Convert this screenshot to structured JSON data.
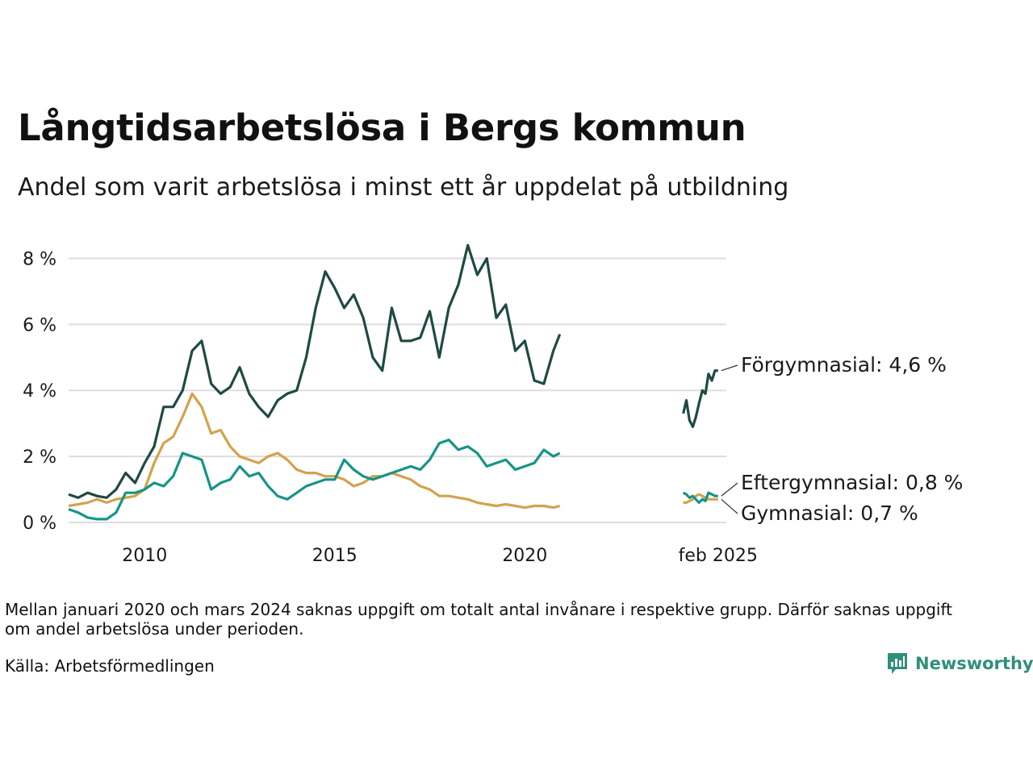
{
  "title": "Långtidsarbetslösa i Bergs kommun",
  "subtitle": "Andel som varit arbetslösa i minst ett år uppdelat på utbildning",
  "note": "Mellan januari 2020 och mars 2024 saknas uppgift om totalt antal invånare i respektive grupp. Därför saknas uppgift om andel arbetslösa under perioden.",
  "source": "Källa: Arbetsförmedlingen",
  "brand": "Newsworthy",
  "colors": {
    "forgymnasial": "#1f4a44",
    "eftergymnasial": "#159586",
    "gymnasial": "#d4a24c",
    "grid": "#dddddd",
    "brand": "#2f8f7a"
  },
  "chart_data": {
    "type": "line",
    "title": "Långtidsarbetslösa i Bergs kommun",
    "subtitle": "Andel som varit arbetslösa i minst ett år uppdelat på utbildning",
    "y_unit": "%",
    "ylim": [
      0,
      8.5
    ],
    "yticks": [
      0,
      2,
      4,
      6,
      8
    ],
    "ytick_labels": [
      "0 %",
      "2 %",
      "4 %",
      "6 %",
      "8 %"
    ],
    "xticks": [
      2010,
      2015,
      2020,
      2025.083
    ],
    "xtick_labels": [
      "2010",
      "2015",
      "2020",
      "feb 2025"
    ],
    "grid": true,
    "series": [
      {
        "name": "Förgymnasial",
        "color": "#1f4a44",
        "end_label": "Förgymnasial: 4,6 %",
        "segments": [
          {
            "x": [
              2008.0,
              2008.25,
              2008.5,
              2008.75,
              2009.0,
              2009.25,
              2009.5,
              2009.75,
              2010.0,
              2010.25,
              2010.5,
              2010.75,
              2011.0,
              2011.25,
              2011.5,
              2011.75,
              2012.0,
              2012.25,
              2012.5,
              2012.75,
              2013.0,
              2013.25,
              2013.5,
              2013.75,
              2014.0,
              2014.25,
              2014.5,
              2014.75,
              2015.0,
              2015.25,
              2015.5,
              2015.75,
              2016.0,
              2016.25,
              2016.5,
              2016.75,
              2017.0,
              2017.25,
              2017.5,
              2017.75,
              2018.0,
              2018.25,
              2018.5,
              2018.75,
              2019.0,
              2019.25,
              2019.5,
              2019.75,
              2020.0,
              2020.25,
              2020.5,
              2020.75,
              2020.92
            ],
            "y": [
              0.85,
              0.75,
              0.9,
              0.8,
              0.75,
              1.0,
              1.5,
              1.2,
              1.8,
              2.3,
              3.5,
              3.5,
              4.0,
              5.2,
              5.5,
              4.2,
              3.9,
              4.1,
              4.7,
              3.9,
              3.5,
              3.2,
              3.7,
              3.9,
              4.0,
              5.0,
              6.5,
              7.6,
              7.1,
              6.5,
              6.9,
              6.2,
              5.0,
              4.6,
              6.5,
              5.5,
              5.5,
              5.6,
              6.4,
              5.0,
              6.5,
              7.2,
              8.4,
              7.5,
              8.0,
              6.2,
              6.6,
              5.2,
              5.5,
              4.3,
              4.2,
              5.2,
              5.7
            ]
          }
        ],
        "end": {
          "x": 2025.083,
          "y": 4.6
        },
        "tail": {
          "x": [
            2024.167,
            2024.25,
            2024.33,
            2024.42,
            2024.5,
            2024.58,
            2024.67,
            2024.75,
            2024.83,
            2024.92,
            2025.0,
            2025.083
          ],
          "y": [
            3.3,
            3.7,
            3.1,
            2.9,
            3.2,
            3.6,
            4.0,
            3.9,
            4.5,
            4.3,
            4.6,
            4.6
          ]
        }
      },
      {
        "name": "Eftergymnasial",
        "color": "#159586",
        "end_label": "Eftergymnasial: 0,8 %",
        "segments": [
          {
            "x": [
              2008.0,
              2008.25,
              2008.5,
              2008.75,
              2009.0,
              2009.25,
              2009.5,
              2009.75,
              2010.0,
              2010.25,
              2010.5,
              2010.75,
              2011.0,
              2011.25,
              2011.5,
              2011.75,
              2012.0,
              2012.25,
              2012.5,
              2012.75,
              2013.0,
              2013.25,
              2013.5,
              2013.75,
              2014.0,
              2014.25,
              2014.5,
              2014.75,
              2015.0,
              2015.25,
              2015.5,
              2015.75,
              2016.0,
              2016.25,
              2016.5,
              2016.75,
              2017.0,
              2017.25,
              2017.5,
              2017.75,
              2018.0,
              2018.25,
              2018.5,
              2018.75,
              2019.0,
              2019.25,
              2019.5,
              2019.75,
              2020.0,
              2020.25,
              2020.5,
              2020.75,
              2020.92
            ],
            "y": [
              0.4,
              0.3,
              0.15,
              0.1,
              0.1,
              0.3,
              0.9,
              0.9,
              1.0,
              1.2,
              1.1,
              1.4,
              2.1,
              2.0,
              1.9,
              1.0,
              1.2,
              1.3,
              1.7,
              1.4,
              1.5,
              1.1,
              0.8,
              0.7,
              0.9,
              1.1,
              1.2,
              1.3,
              1.3,
              1.9,
              1.6,
              1.4,
              1.3,
              1.4,
              1.5,
              1.6,
              1.7,
              1.6,
              1.9,
              2.4,
              2.5,
              2.2,
              2.3,
              2.1,
              1.7,
              1.8,
              1.9,
              1.6,
              1.7,
              1.8,
              2.2,
              2.0,
              2.1
            ]
          }
        ],
        "end": {
          "x": 2025.083,
          "y": 0.8
        },
        "tail": {
          "x": [
            2024.167,
            2024.25,
            2024.33,
            2024.42,
            2024.5,
            2024.58,
            2024.67,
            2024.75,
            2024.83,
            2024.92,
            2025.0,
            2025.083
          ],
          "y": [
            0.9,
            0.85,
            0.75,
            0.8,
            0.7,
            0.6,
            0.7,
            0.65,
            0.9,
            0.85,
            0.8,
            0.8
          ]
        }
      },
      {
        "name": "Gymnasial",
        "color": "#d4a24c",
        "end_label": "Gymnasial: 0,7 %",
        "segments": [
          {
            "x": [
              2008.0,
              2008.25,
              2008.5,
              2008.75,
              2009.0,
              2009.25,
              2009.5,
              2009.75,
              2010.0,
              2010.25,
              2010.5,
              2010.75,
              2011.0,
              2011.25,
              2011.5,
              2011.75,
              2012.0,
              2012.25,
              2012.5,
              2012.75,
              2013.0,
              2013.25,
              2013.5,
              2013.75,
              2014.0,
              2014.25,
              2014.5,
              2014.75,
              2015.0,
              2015.25,
              2015.5,
              2015.75,
              2016.0,
              2016.25,
              2016.5,
              2016.75,
              2017.0,
              2017.25,
              2017.5,
              2017.75,
              2018.0,
              2018.25,
              2018.5,
              2018.75,
              2019.0,
              2019.25,
              2019.5,
              2019.75,
              2020.0,
              2020.25,
              2020.5,
              2020.75,
              2020.92
            ],
            "y": [
              0.5,
              0.55,
              0.6,
              0.7,
              0.6,
              0.7,
              0.75,
              0.8,
              1.0,
              1.8,
              2.4,
              2.6,
              3.2,
              3.9,
              3.5,
              2.7,
              2.8,
              2.3,
              2.0,
              1.9,
              1.8,
              2.0,
              2.1,
              1.9,
              1.6,
              1.5,
              1.5,
              1.4,
              1.4,
              1.3,
              1.1,
              1.2,
              1.4,
              1.4,
              1.5,
              1.4,
              1.3,
              1.1,
              1.0,
              0.8,
              0.8,
              0.75,
              0.7,
              0.6,
              0.55,
              0.5,
              0.55,
              0.5,
              0.45,
              0.5,
              0.5,
              0.45,
              0.5
            ]
          }
        ],
        "end": {
          "x": 2025.083,
          "y": 0.7
        },
        "tail": {
          "x": [
            2024.167,
            2024.25,
            2024.33,
            2024.42,
            2024.5,
            2024.58,
            2024.67,
            2024.75,
            2024.83,
            2024.92,
            2025.0,
            2025.083
          ],
          "y": [
            0.6,
            0.6,
            0.65,
            0.7,
            0.8,
            0.85,
            0.8,
            0.75,
            0.7,
            0.7,
            0.7,
            0.7
          ]
        }
      }
    ]
  }
}
